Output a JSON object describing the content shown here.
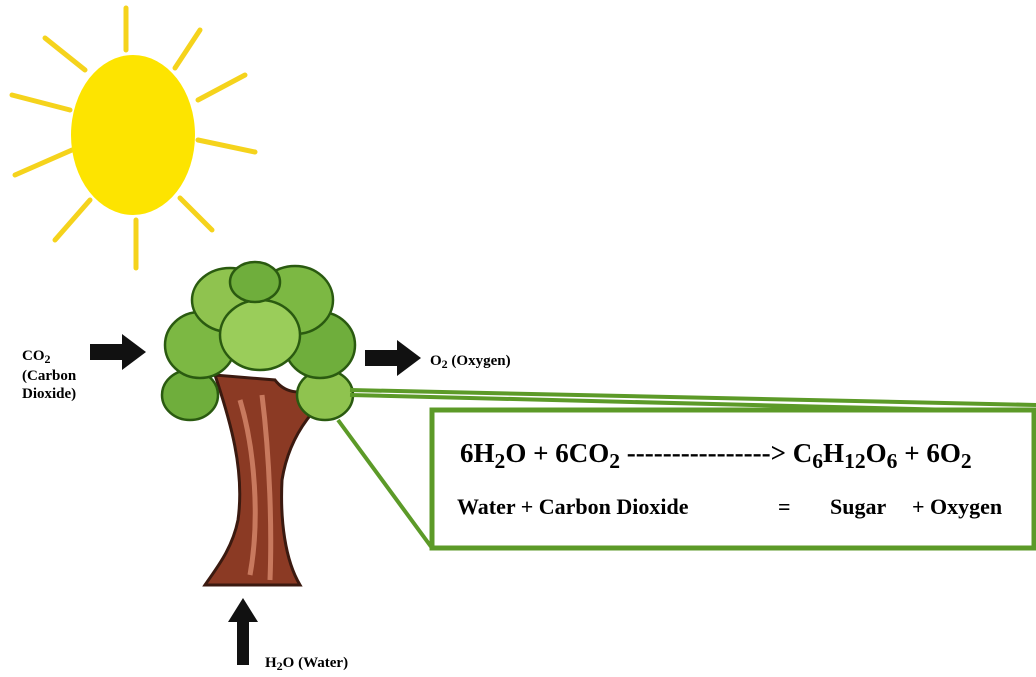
{
  "labels": {
    "co2": {
      "formula": [
        "CO",
        "2"
      ],
      "name": "(Carbon Dioxide)"
    },
    "o2": {
      "formula": [
        "O",
        "2",
        " (Oxygen)"
      ]
    },
    "h2o": {
      "formula": [
        "H",
        "2",
        "O (Water)"
      ]
    }
  },
  "equation": {
    "formula": [
      "6H",
      "2",
      "O + 6CO",
      "2",
      " ----------------> C",
      "6",
      "H",
      "12",
      "O",
      "6",
      " + 6O",
      "2"
    ],
    "words": [
      "Water + Carbon Dioxide",
      "=",
      "Sugar",
      "+ Oxygen"
    ]
  }
}
